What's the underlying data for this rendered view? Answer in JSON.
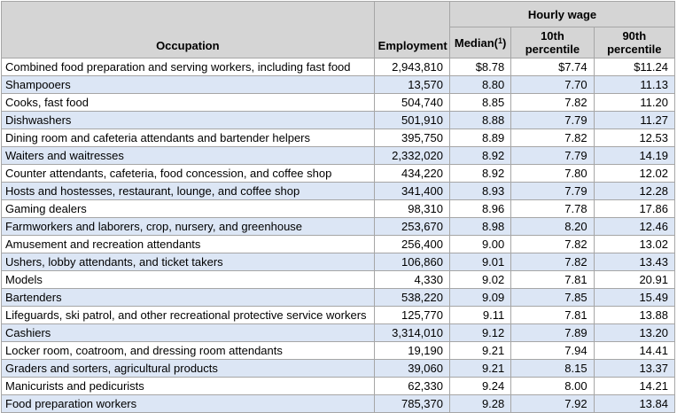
{
  "colors": {
    "header_bg": "#d5d5d5",
    "row_alt_bg": "#dce6f5",
    "border_inner": "#a6a6a6",
    "border_outer": "#8c8c8c",
    "text": "#000000",
    "row_bg": "#ffffff"
  },
  "chart_data": {
    "type": "table",
    "title": "",
    "column_group": {
      "label": "Hourly wage",
      "spans_columns": [
        "Median(1)",
        "10th percentile",
        "90th percentile"
      ]
    },
    "headers": {
      "occupation": "Occupation",
      "employment": "Employment",
      "hourly_wage": "Hourly wage",
      "median_prefix": "Median(",
      "median_sup": "1",
      "median_suffix": ")",
      "p10": "10th percentile",
      "p90": "90th percentile"
    },
    "rows": [
      {
        "occupation": "Combined food preparation and serving workers, including fast food",
        "employment": "2,943,810",
        "median": "$8.78",
        "p10": "$7.74",
        "p90": "$11.24"
      },
      {
        "occupation": "Shampooers",
        "employment": "13,570",
        "median": "8.80",
        "p10": "7.70",
        "p90": "11.13"
      },
      {
        "occupation": "Cooks, fast food",
        "employment": "504,740",
        "median": "8.85",
        "p10": "7.82",
        "p90": "11.20"
      },
      {
        "occupation": "Dishwashers",
        "employment": "501,910",
        "median": "8.88",
        "p10": "7.79",
        "p90": "11.27"
      },
      {
        "occupation": "Dining room and cafeteria attendants and bartender helpers",
        "employment": "395,750",
        "median": "8.89",
        "p10": "7.82",
        "p90": "12.53"
      },
      {
        "occupation": "Waiters and waitresses",
        "employment": "2,332,020",
        "median": "8.92",
        "p10": "7.79",
        "p90": "14.19"
      },
      {
        "occupation": "Counter attendants, cafeteria, food concession, and coffee shop",
        "employment": "434,220",
        "median": "8.92",
        "p10": "7.80",
        "p90": "12.02"
      },
      {
        "occupation": "Hosts and hostesses, restaurant, lounge, and coffee shop",
        "employment": "341,400",
        "median": "8.93",
        "p10": "7.79",
        "p90": "12.28"
      },
      {
        "occupation": "Gaming dealers",
        "employment": "98,310",
        "median": "8.96",
        "p10": "7.78",
        "p90": "17.86"
      },
      {
        "occupation": "Farmworkers and laborers, crop, nursery, and greenhouse",
        "employment": "253,670",
        "median": "8.98",
        "p10": "8.20",
        "p90": "12.46"
      },
      {
        "occupation": "Amusement and recreation attendants",
        "employment": "256,400",
        "median": "9.00",
        "p10": "7.82",
        "p90": "13.02"
      },
      {
        "occupation": "Ushers, lobby attendants, and ticket takers",
        "employment": "106,860",
        "median": "9.01",
        "p10": "7.82",
        "p90": "13.43"
      },
      {
        "occupation": "Models",
        "employment": "4,330",
        "median": "9.02",
        "p10": "7.81",
        "p90": "20.91"
      },
      {
        "occupation": "Bartenders",
        "employment": "538,220",
        "median": "9.09",
        "p10": "7.85",
        "p90": "15.49"
      },
      {
        "occupation": "Lifeguards, ski patrol, and other recreational protective service workers",
        "employment": "125,770",
        "median": "9.11",
        "p10": "7.81",
        "p90": "13.88"
      },
      {
        "occupation": "Cashiers",
        "employment": "3,314,010",
        "median": "9.12",
        "p10": "7.89",
        "p90": "13.20"
      },
      {
        "occupation": "Locker room, coatroom, and dressing room attendants",
        "employment": "19,190",
        "median": "9.21",
        "p10": "7.94",
        "p90": "14.41"
      },
      {
        "occupation": "Graders and sorters, agricultural products",
        "employment": "39,060",
        "median": "9.21",
        "p10": "8.15",
        "p90": "13.37"
      },
      {
        "occupation": "Manicurists and pedicurists",
        "employment": "62,330",
        "median": "9.24",
        "p10": "8.00",
        "p90": "14.21"
      },
      {
        "occupation": "Food preparation workers",
        "employment": "785,370",
        "median": "9.28",
        "p10": "7.92",
        "p90": "13.84"
      }
    ]
  }
}
